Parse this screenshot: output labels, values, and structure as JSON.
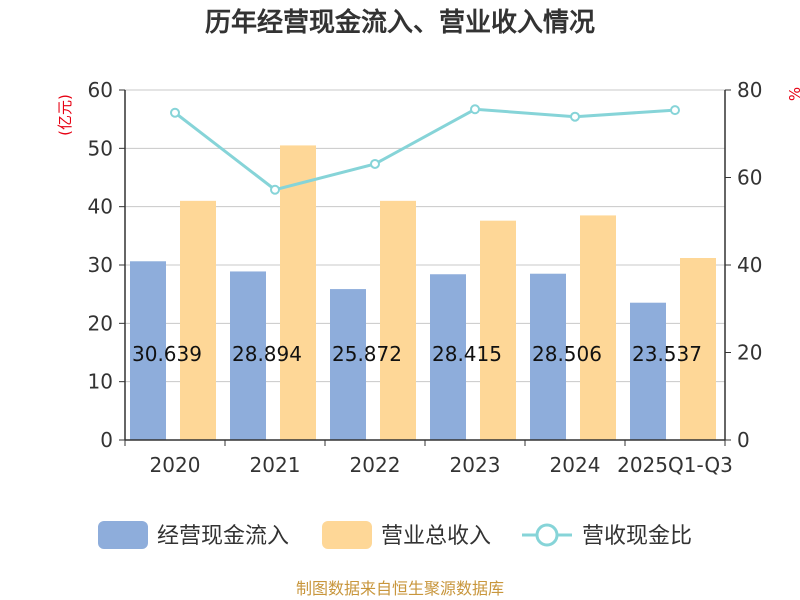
{
  "chart_data": {
    "type": "bar",
    "title": "历年经营现金流入、营业收入情况",
    "categories": [
      "2020",
      "2021",
      "2022",
      "2023",
      "2024",
      "2025Q1-Q3"
    ],
    "series": [
      {
        "name": "经营现金流入",
        "type": "bar",
        "axis": "left",
        "color": "#8eaddb",
        "values": [
          30.639,
          28.894,
          25.872,
          28.415,
          28.506,
          23.537
        ],
        "labels": [
          "30.639",
          "28.894",
          "25.872",
          "28.415",
          "28.506",
          "23.537"
        ]
      },
      {
        "name": "营业总收入",
        "type": "bar",
        "axis": "left",
        "color": "#fed797",
        "values": [
          41.0,
          50.5,
          41.0,
          37.6,
          38.5,
          31.2
        ]
      },
      {
        "name": "营收现金比",
        "type": "line",
        "axis": "right",
        "color": "#86d4d8",
        "values": [
          74.8,
          57.2,
          63.1,
          75.6,
          73.9,
          75.4
        ]
      }
    ],
    "y_left": {
      "unit": "(亿元)",
      "min": 0,
      "max": 60,
      "ticks": [
        "0",
        "10",
        "20",
        "30",
        "40",
        "50",
        "60"
      ]
    },
    "y_right": {
      "unit": "%",
      "min": 0,
      "max": 80,
      "ticks": [
        "0",
        "20",
        "40",
        "60",
        "80"
      ]
    },
    "grid": true,
    "legend_position": "bottom"
  },
  "source": "制图数据来自恒生聚源数据库"
}
